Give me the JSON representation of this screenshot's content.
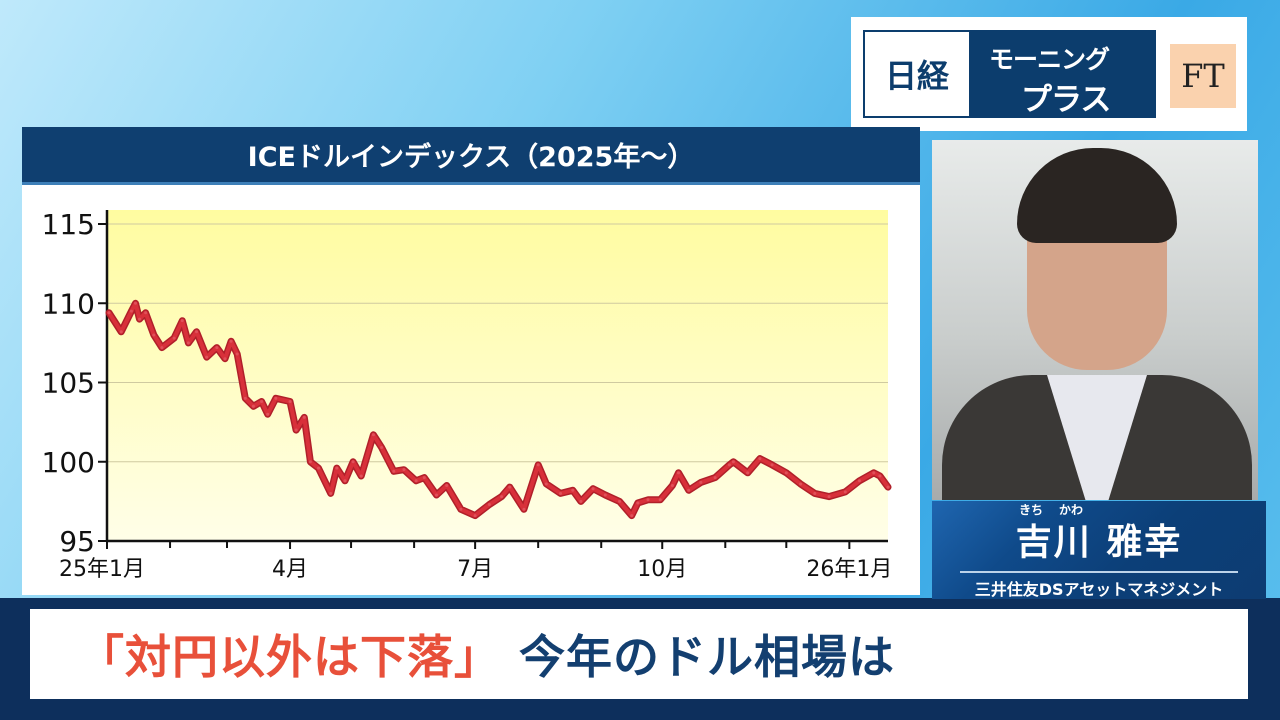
{
  "logo": {
    "nikkei": "日経",
    "line1": "モーニング",
    "line2": "プラス",
    "ft": "FT"
  },
  "chart_title": "ICEドルインデックス（2025年〜）",
  "chart_data": {
    "type": "line",
    "title": "ICEドルインデックス（2025年〜）",
    "xlabel": "",
    "ylabel": "",
    "ylim": [
      95,
      116
    ],
    "xlim": [
      "2025-01-01",
      "2026-01-20"
    ],
    "yticks": [
      95,
      100,
      105,
      110,
      115
    ],
    "xtick_labels": [
      {
        "date": "2025-01-01",
        "label": "25年1月"
      },
      {
        "date": "2025-04-01",
        "label": "4月"
      },
      {
        "date": "2025-07-01",
        "label": "7月"
      },
      {
        "date": "2025-10-01",
        "label": "10月"
      },
      {
        "date": "2026-01-01",
        "label": "26年1月"
      }
    ],
    "minor_ticks": [
      "2025-02-01",
      "2025-03-01",
      "2025-05-01",
      "2025-06-01",
      "2025-08-01",
      "2025-09-01",
      "2025-11-01",
      "2025-12-01"
    ],
    "grid": true,
    "line_color": "#d8303a",
    "background": "#fffca8",
    "points": [
      [
        "2025-01-02",
        109.4
      ],
      [
        "2025-01-08",
        108.2
      ],
      [
        "2025-01-13",
        109.5
      ],
      [
        "2025-01-15",
        110.0
      ],
      [
        "2025-01-17",
        109.0
      ],
      [
        "2025-01-20",
        109.4
      ],
      [
        "2025-01-24",
        108.0
      ],
      [
        "2025-01-28",
        107.2
      ],
      [
        "2025-02-03",
        107.8
      ],
      [
        "2025-02-07",
        108.9
      ],
      [
        "2025-02-10",
        107.5
      ],
      [
        "2025-02-14",
        108.2
      ],
      [
        "2025-02-19",
        106.6
      ],
      [
        "2025-02-24",
        107.2
      ],
      [
        "2025-02-28",
        106.5
      ],
      [
        "2025-03-03",
        107.6
      ],
      [
        "2025-03-06",
        106.8
      ],
      [
        "2025-03-10",
        104.0
      ],
      [
        "2025-03-14",
        103.5
      ],
      [
        "2025-03-18",
        103.8
      ],
      [
        "2025-03-21",
        103.0
      ],
      [
        "2025-03-25",
        104.0
      ],
      [
        "2025-04-01",
        103.8
      ],
      [
        "2025-04-04",
        102.0
      ],
      [
        "2025-04-08",
        102.8
      ],
      [
        "2025-04-11",
        100.0
      ],
      [
        "2025-04-15",
        99.6
      ],
      [
        "2025-04-21",
        98.0
      ],
      [
        "2025-04-24",
        99.6
      ],
      [
        "2025-04-28",
        98.8
      ],
      [
        "2025-05-02",
        100.0
      ],
      [
        "2025-05-06",
        99.1
      ],
      [
        "2025-05-12",
        101.7
      ],
      [
        "2025-05-16",
        100.9
      ],
      [
        "2025-05-22",
        99.4
      ],
      [
        "2025-05-27",
        99.5
      ],
      [
        "2025-06-02",
        98.8
      ],
      [
        "2025-06-06",
        99.0
      ],
      [
        "2025-06-12",
        97.9
      ],
      [
        "2025-06-17",
        98.5
      ],
      [
        "2025-06-24",
        97.0
      ],
      [
        "2025-07-01",
        96.6
      ],
      [
        "2025-07-08",
        97.3
      ],
      [
        "2025-07-14",
        97.8
      ],
      [
        "2025-07-18",
        98.4
      ],
      [
        "2025-07-25",
        97.0
      ],
      [
        "2025-08-01",
        99.8
      ],
      [
        "2025-08-05",
        98.6
      ],
      [
        "2025-08-12",
        98.0
      ],
      [
        "2025-08-18",
        98.2
      ],
      [
        "2025-08-22",
        97.5
      ],
      [
        "2025-08-28",
        98.3
      ],
      [
        "2025-09-03",
        97.9
      ],
      [
        "2025-09-10",
        97.5
      ],
      [
        "2025-09-16",
        96.6
      ],
      [
        "2025-09-19",
        97.4
      ],
      [
        "2025-09-24",
        97.6
      ],
      [
        "2025-09-30",
        97.6
      ],
      [
        "2025-10-06",
        98.5
      ],
      [
        "2025-10-09",
        99.3
      ],
      [
        "2025-10-14",
        98.2
      ],
      [
        "2025-10-20",
        98.7
      ],
      [
        "2025-10-27",
        99.0
      ],
      [
        "2025-11-03",
        99.8
      ],
      [
        "2025-11-05",
        100.0
      ],
      [
        "2025-11-12",
        99.3
      ],
      [
        "2025-11-18",
        100.2
      ],
      [
        "2025-11-24",
        99.8
      ],
      [
        "2025-12-01",
        99.3
      ],
      [
        "2025-12-08",
        98.6
      ],
      [
        "2025-12-15",
        98.0
      ],
      [
        "2025-12-22",
        97.8
      ],
      [
        "2025-12-30",
        98.1
      ],
      [
        "2026-01-06",
        98.8
      ],
      [
        "2026-01-13",
        99.3
      ],
      [
        "2026-01-16",
        99.1
      ],
      [
        "2026-01-20",
        98.4
      ]
    ]
  },
  "guest": {
    "ruby_1": "きち",
    "ruby_2": "かわ",
    "name": "吉川 雅幸",
    "organization": "三井住友DSアセットマネジメント"
  },
  "headline": {
    "quote": "「対円以外は下落」",
    "rest": "今年のドル相場は"
  },
  "colors": {
    "navy": "#0f3f70",
    "headline_red": "#e8503a",
    "headline_navy": "#133f70"
  }
}
